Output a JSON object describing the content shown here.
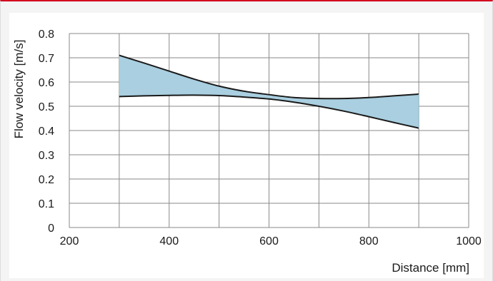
{
  "chart_data": {
    "type": "area",
    "title": "",
    "xlabel": "Distance [mm]",
    "ylabel": "Flow velocity [m/s]",
    "xlim": [
      200,
      1000
    ],
    "ylim": [
      0,
      0.8
    ],
    "xticks": [
      200,
      400,
      600,
      800,
      1000
    ],
    "yticks": [
      0,
      0.1,
      0.2,
      0.3,
      0.4,
      0.5,
      0.6,
      0.7,
      0.8
    ],
    "grid": true,
    "fill_color": "#a9cfe0",
    "line_color": "#1a1a1a",
    "series": [
      {
        "x": [
          300,
          350,
          400,
          450,
          500,
          550,
          600,
          650,
          700,
          750,
          800,
          850,
          900
        ],
        "values": [
          0.71,
          0.678,
          0.645,
          0.612,
          0.583,
          0.562,
          0.548,
          0.536,
          0.532,
          0.532,
          0.536,
          0.543,
          0.55
        ]
      },
      {
        "x": [
          300,
          350,
          400,
          450,
          500,
          550,
          600,
          650,
          700,
          750,
          800,
          850,
          900
        ],
        "values": [
          0.54,
          0.543,
          0.545,
          0.546,
          0.544,
          0.538,
          0.53,
          0.517,
          0.5,
          0.48,
          0.457,
          0.433,
          0.41
        ]
      }
    ]
  }
}
